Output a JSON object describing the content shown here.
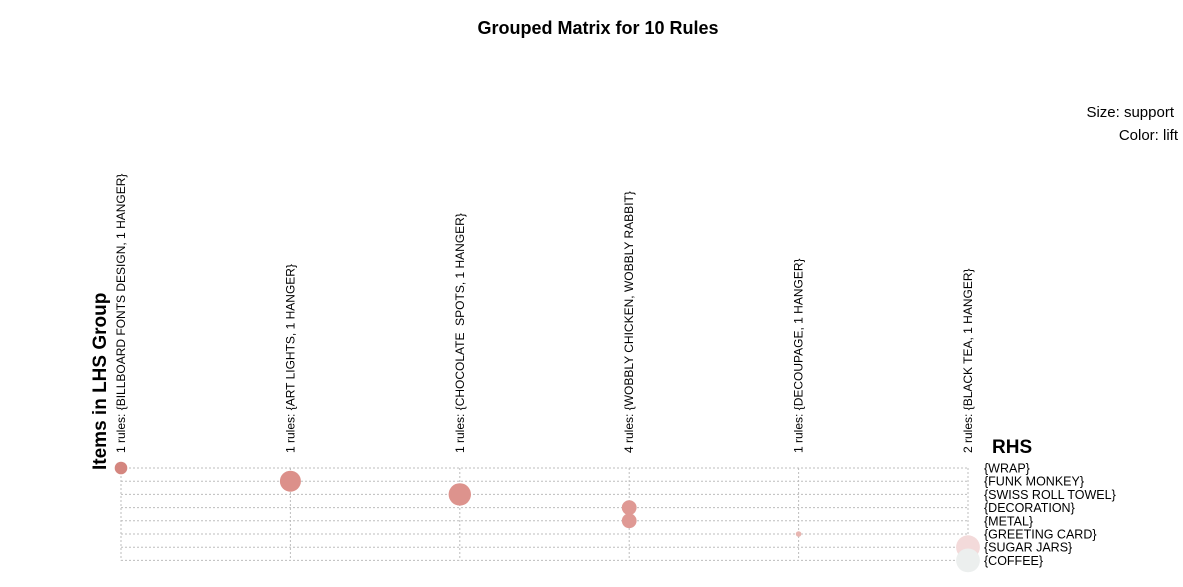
{
  "chart_data": {
    "type": "scatter",
    "title": "Grouped Matrix for 10 Rules",
    "legend": {
      "size": "Size: support",
      "color": "Color: lift",
      "placement": "top-right"
    },
    "xlabel": "Items in LHS Group",
    "ylabel": "RHS",
    "lhs_groups": [
      "1 rules: {BILLBOARD FONTS DESIGN, 1 HANGER}",
      "1 rules: {ART LIGHTS, 1 HANGER}",
      "1 rules: {CHOCOLATE  SPOTS, 1 HANGER}",
      "4 rules: {WOBBLY CHICKEN, WOBBLY RABBIT}",
      "1 rules: {DECOUPAGE, 1 HANGER}",
      "2 rules: {BLACK TEA, 1 HANGER}"
    ],
    "rhs_items": [
      "{WRAP}",
      "{FUNK MONKEY}",
      "{SWISS ROLL TOWEL}",
      "{DECORATION}",
      "{METAL}",
      "{GREETING CARD}",
      "{SUGAR JARS}",
      "{COFFEE}"
    ],
    "points": [
      {
        "lhs": 0,
        "rhs": 0,
        "support": 0.25,
        "color": "#d4867f"
      },
      {
        "lhs": 1,
        "rhs": 1,
        "support": 0.7,
        "color": "#dc908a"
      },
      {
        "lhs": 2,
        "rhs": 2,
        "support": 0.8,
        "color": "#dd938d"
      },
      {
        "lhs": 3,
        "rhs": 3,
        "support": 0.35,
        "color": "#df9994"
      },
      {
        "lhs": 3,
        "rhs": 4,
        "support": 0.35,
        "color": "#df9994"
      },
      {
        "lhs": 4,
        "rhs": 5,
        "support": 0.05,
        "color": "#e8b6b1"
      },
      {
        "lhs": 5,
        "rhs": 6,
        "support": 0.9,
        "color": "#f3dada"
      },
      {
        "lhs": 5,
        "rhs": 7,
        "support": 0.9,
        "color": "#ecefee"
      }
    ],
    "grid": true
  }
}
